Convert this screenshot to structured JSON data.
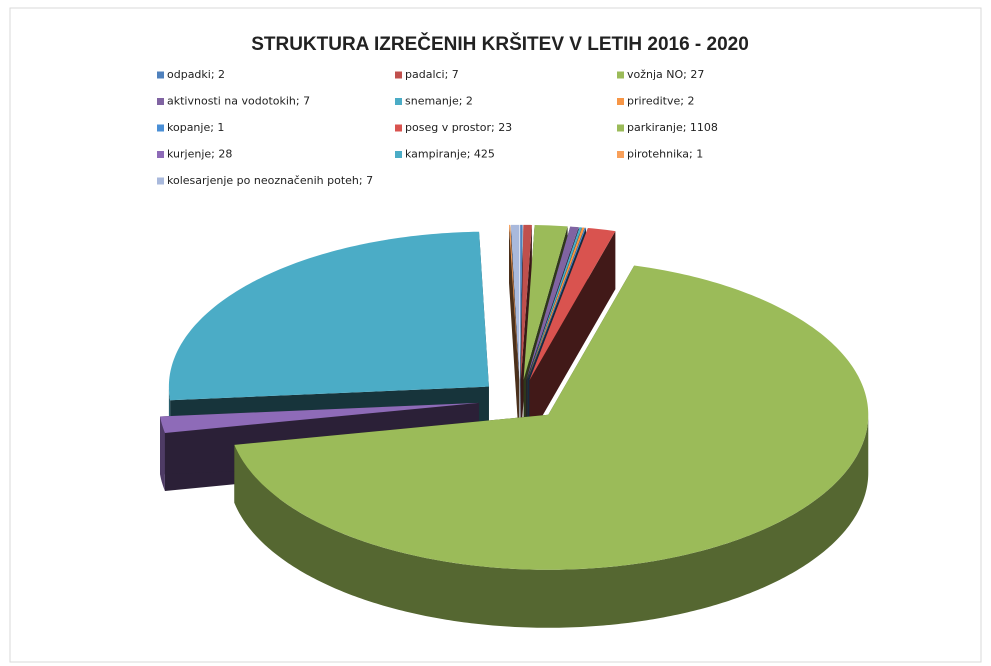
{
  "chart_data": {
    "type": "pie",
    "title": "STRUKTURA IZREČENIH KRŠITEV V LETIH 2016 - 2020",
    "categories": [
      "odpadki; 2",
      "padalci; 7",
      "vožnja NO; 27",
      "aktivnosti na vodotokih; 7",
      "snemanje; 2",
      "prireditve; 2",
      "kopanje; 1",
      "poseg v prostor; 23",
      "parkiranje; 1108",
      "kurjenje; 28",
      "kampiranje; 425",
      "pirotehnika; 1",
      "kolesarjenje po neoznačenih poteh; 7"
    ],
    "values": [
      2,
      7,
      27,
      7,
      2,
      2,
      1,
      23,
      1108,
      28,
      425,
      1,
      7
    ],
    "colors": [
      "#4f81bd",
      "#c0504d",
      "#9bbb59",
      "#8064a2",
      "#4bacc6",
      "#f79646",
      "#4a8fd6",
      "#d9534f",
      "#9bbb59",
      "#8e6bb8",
      "#4bacc6",
      "#f9a05a",
      "#a9b9dc"
    ],
    "legend": "top"
  }
}
